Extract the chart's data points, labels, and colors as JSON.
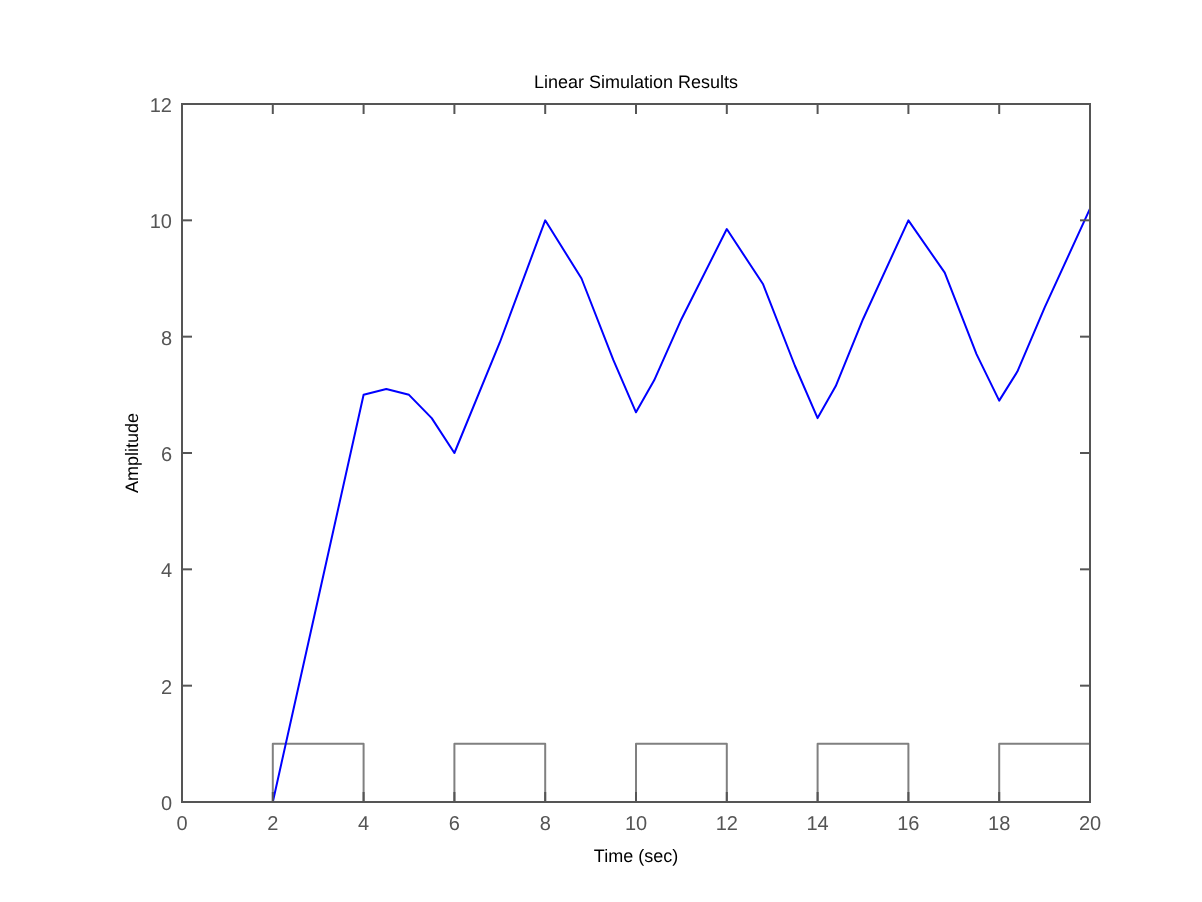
{
  "chart_data": {
    "type": "line",
    "title": "Linear Simulation Results",
    "xlabel": "Time (sec)",
    "ylabel": "Amplitude",
    "xlim": [
      0,
      20
    ],
    "ylim": [
      0,
      12
    ],
    "xticks": [
      0,
      2,
      4,
      6,
      8,
      10,
      12,
      14,
      16,
      18,
      20
    ],
    "yticks": [
      0,
      2,
      4,
      6,
      8,
      10,
      12
    ],
    "grid": false,
    "series": [
      {
        "color": "#808080",
        "x": [
          0,
          2,
          2,
          4,
          4,
          6,
          6,
          8,
          8,
          10,
          10,
          12,
          12,
          14,
          14,
          16,
          16,
          18,
          18,
          20
        ],
        "values": [
          0,
          0,
          1,
          1,
          0,
          0,
          1,
          1,
          0,
          0,
          1,
          1,
          0,
          0,
          1,
          1,
          0,
          0,
          1,
          1
        ]
      },
      {
        "color": "#0000ff",
        "x": [
          2,
          3,
          4,
          4.5,
          5,
          5.5,
          6,
          7,
          8,
          8.8,
          9.5,
          10,
          10.4,
          11,
          12,
          12.8,
          13.5,
          14,
          14.4,
          15,
          16,
          16.8,
          17.5,
          18,
          18.4,
          19,
          20
        ],
        "values": [
          0,
          3.5,
          7.0,
          7.1,
          7.0,
          6.6,
          6.0,
          7.9,
          10.0,
          9.0,
          7.6,
          6.7,
          7.25,
          8.3,
          9.85,
          8.9,
          7.5,
          6.6,
          7.15,
          8.3,
          10.0,
          9.1,
          7.7,
          6.9,
          7.4,
          8.5,
          10.2
        ]
      }
    ]
  }
}
